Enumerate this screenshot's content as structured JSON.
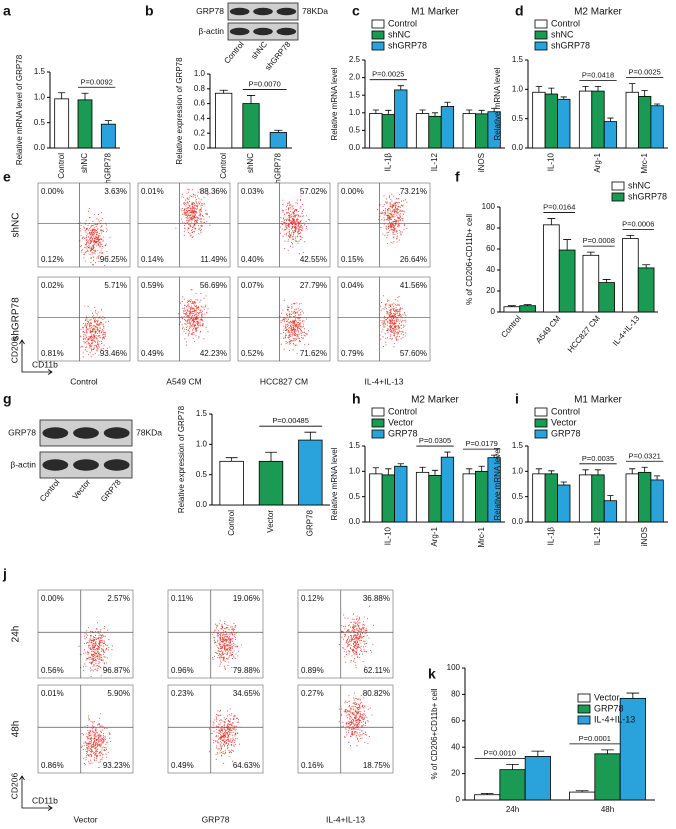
{
  "chart_data": [
    {
      "type": "bar",
      "panel": "a",
      "y_label": "Relative mRNA level of GRP78",
      "categories": [
        "Control",
        "shNC",
        "shGRP78"
      ],
      "values": [
        0.97,
        0.95,
        0.47
      ],
      "errors": [
        0.12,
        0.13,
        0.07
      ],
      "colors": [
        "#ffffff",
        "#1a9a52",
        "#2aa3dc"
      ],
      "ylim": [
        0,
        1.5
      ],
      "yticks": [
        {
          "value": 0,
          "label": "0.0"
        },
        0.5,
        {
          "value": 1,
          "label": "1.0"
        },
        1.5
      ],
      "annotations": [
        {
          "label": "P=0.0092",
          "between": [
            "shNC",
            "shGRP78"
          ]
        }
      ]
    },
    {
      "type": "bar",
      "y_label": "Relative expression of GRP78",
      "categories": [
        "Control",
        "shNC",
        "shGRP78"
      ],
      "values": [
        0.74,
        0.6,
        0.21
      ],
      "errors": [
        0.04,
        0.11,
        0.03
      ],
      "colors": [
        "#ffffff",
        "#1a9a52",
        "#2aa3dc"
      ],
      "ylim": [
        0,
        1
      ],
      "yticks": [
        {
          "value": 0,
          "label": "0.0"
        },
        0.2,
        0.4,
        0.6,
        0.8,
        {
          "value": 1,
          "label": "1.0"
        }
      ],
      "annotations": [
        {
          "label": "P=0.0070",
          "between": [
            "shNC",
            "shGRP78"
          ]
        }
      ]
    },
    {
      "type": "grouped_bar",
      "panel": "c",
      "title": "M1 Marker",
      "y_label": "Relative mRNA level",
      "categories": [
        "IL-1β",
        "IL-12",
        "iNOS"
      ],
      "series": [
        {
          "name": "Control",
          "color": "#ffffff",
          "values": [
            0.98,
            0.98,
            0.98
          ],
          "errors": [
            0.1,
            0.1,
            0.1
          ]
        },
        {
          "name": "shNC",
          "color": "#1a9a52",
          "values": [
            0.95,
            0.9,
            0.97
          ],
          "errors": [
            0.12,
            0.1,
            0.1
          ]
        },
        {
          "name": "shGRP78",
          "color": "#2aa3dc",
          "values": [
            1.65,
            1.18,
            1.03
          ],
          "errors": [
            0.12,
            0.12,
            0.1
          ]
        }
      ],
      "ylim": [
        0,
        2.5
      ],
      "yticks": [
        {
          "value": 0,
          "label": "0.0"
        },
        0.5,
        {
          "value": 1,
          "label": "1.0"
        },
        1.5,
        {
          "value": 2,
          "label": "2.0"
        },
        2.5
      ],
      "annotations": [
        {
          "label": "P=0.0025",
          "category": "IL-1β",
          "between": [
            "Control",
            "shGRP78"
          ]
        }
      ]
    },
    {
      "type": "grouped_bar",
      "panel": "d",
      "title": "M2 Marker",
      "y_label": "Relative mRNA level",
      "categories": [
        "IL-10",
        "Arg-1",
        "Mrc-1"
      ],
      "series": [
        {
          "name": "Control",
          "color": "#ffffff",
          "values": [
            0.95,
            0.97,
            0.95
          ],
          "errors": [
            0.1,
            0.08,
            0.15
          ]
        },
        {
          "name": "shNC",
          "color": "#1a9a52",
          "values": [
            0.92,
            0.97,
            0.88
          ],
          "errors": [
            0.1,
            0.08,
            0.1
          ]
        },
        {
          "name": "shGRP78",
          "color": "#2aa3dc",
          "values": [
            0.83,
            0.45,
            0.72
          ],
          "errors": [
            0.04,
            0.06,
            0.03
          ]
        }
      ],
      "ylim": [
        0,
        1.5
      ],
      "yticks": [
        {
          "value": 0,
          "label": "0.0"
        },
        0.5,
        {
          "value": 1,
          "label": "1.0"
        },
        1.5
      ],
      "annotations": [
        {
          "label": "P=0.0418",
          "category": "Arg-1",
          "between": [
            "Control",
            "shGRP78"
          ]
        },
        {
          "label": "P=0.0025",
          "category": "Mrc-1",
          "between": [
            "Control",
            "shGRP78"
          ]
        }
      ]
    },
    {
      "type": "grouped_bar",
      "panel": "f",
      "y_label": "% of CD206+CD11b+ cell",
      "categories": [
        "Control",
        "A549 CM",
        "HCC827 CM",
        "IL-4+IL-13"
      ],
      "series": [
        {
          "name": "shNC",
          "color": "#ffffff",
          "values": [
            5,
            83,
            54,
            70
          ],
          "errors": [
            1,
            6,
            3,
            3
          ]
        },
        {
          "name": "shGRP78",
          "color": "#1a9a52",
          "values": [
            6,
            59,
            28,
            42
          ],
          "errors": [
            1,
            10,
            3,
            3
          ]
        }
      ],
      "ylim": [
        0,
        100
      ],
      "yticks": [
        0,
        20,
        40,
        60,
        80,
        100
      ],
      "annotations": [
        {
          "label": "P=0.0164",
          "category": "A549 CM",
          "between": [
            "shNC",
            "shGRP78"
          ]
        },
        {
          "label": "P=0.0008",
          "category": "HCC827 CM",
          "between": [
            "shNC",
            "shGRP78"
          ]
        },
        {
          "label": "P=0.0006",
          "category": "IL-4+IL-13",
          "between": [
            "shNC",
            "shGRP78"
          ]
        }
      ]
    },
    {
      "type": "bar",
      "y_label": "Relative expression of GRP78",
      "categories": [
        "Control",
        "Vector",
        "GRP78"
      ],
      "values": [
        0.72,
        0.72,
        1.07
      ],
      "errors": [
        0.06,
        0.15,
        0.13
      ],
      "colors": [
        "#ffffff",
        "#1a9a52",
        "#2aa3dc"
      ],
      "ylim": [
        0,
        1.5
      ],
      "yticks": [
        {
          "value": 0,
          "label": "0.0"
        },
        0.5,
        {
          "value": 1,
          "label": "1.0"
        },
        1.5
      ],
      "annotations": [
        {
          "label": "P=0.00485",
          "between": [
            "Vector",
            "GRP78"
          ]
        }
      ]
    },
    {
      "type": "grouped_bar",
      "panel": "h",
      "title": "M2 Marker",
      "y_label": "Relative mRNA level",
      "categories": [
        "IL-10",
        "Arg-1",
        "Mrc-1"
      ],
      "series": [
        {
          "name": "Control",
          "color": "#ffffff",
          "values": [
            0.95,
            0.98,
            0.95
          ],
          "errors": [
            0.12,
            0.1,
            0.1
          ]
        },
        {
          "name": "Vector",
          "color": "#1a9a52",
          "values": [
            0.93,
            0.92,
            1.0
          ],
          "errors": [
            0.12,
            0.1,
            0.1
          ]
        },
        {
          "name": "GRP78",
          "color": "#2aa3dc",
          "values": [
            1.1,
            1.28,
            1.27
          ],
          "errors": [
            0.05,
            0.1,
            0.05
          ]
        }
      ],
      "ylim": [
        0,
        1.5
      ],
      "yticks": [
        {
          "value": 0,
          "label": "0.0"
        },
        0.5,
        {
          "value": 1,
          "label": "1.0"
        },
        1.5
      ],
      "annotations": [
        {
          "label": "P=0.0305",
          "category": "Arg-1",
          "between": [
            "Control",
            "GRP78"
          ]
        },
        {
          "label": "P=0.0179",
          "category": "Mrc-1",
          "between": [
            "Control",
            "GRP78"
          ]
        }
      ]
    },
    {
      "type": "grouped_bar",
      "panel": "i",
      "title": "M1 Marker",
      "y_label": "Relative mRNA level",
      "categories": [
        "IL-1β",
        "IL-12",
        "iNOS"
      ],
      "series": [
        {
          "name": "Control",
          "color": "#ffffff",
          "values": [
            0.95,
            0.93,
            0.95
          ],
          "errors": [
            0.1,
            0.1,
            0.1
          ]
        },
        {
          "name": "Vector",
          "color": "#1a9a52",
          "values": [
            0.95,
            0.93,
            0.98
          ],
          "errors": [
            0.06,
            0.1,
            0.1
          ]
        },
        {
          "name": "GRP78",
          "color": "#2aa3dc",
          "values": [
            0.73,
            0.42,
            0.83
          ],
          "errors": [
            0.06,
            0.1,
            0.08
          ]
        }
      ],
      "ylim": [
        0,
        1.5
      ],
      "yticks": [
        {
          "value": 0,
          "label": "0.0"
        },
        0.5,
        {
          "value": 1,
          "label": "1.0"
        },
        1.5
      ],
      "annotations": [
        {
          "label": "P=0.0035",
          "category": "IL-12",
          "between": [
            "Control",
            "GRP78"
          ]
        },
        {
          "label": "P=0.0321",
          "category": "iNOS",
          "between": [
            "Control",
            "GRP78"
          ]
        }
      ]
    },
    {
      "type": "grouped_bar",
      "panel": "k",
      "y_label": "% of CD206+CD11b+ cell",
      "categories": [
        "24h",
        "48h"
      ],
      "series": [
        {
          "name": "Vector",
          "color": "#ffffff",
          "values": [
            4,
            6
          ],
          "errors": [
            1,
            1
          ]
        },
        {
          "name": "GRP78",
          "color": "#1a9a52",
          "values": [
            23,
            35
          ],
          "errors": [
            4,
            3
          ]
        },
        {
          "name": "IL-4+IL-13",
          "color": "#2aa3dc",
          "values": [
            33,
            77
          ],
          "errors": [
            4,
            4
          ]
        }
      ],
      "ylim": [
        0,
        100
      ],
      "yticks": [
        0,
        20,
        40,
        60,
        80,
        100
      ],
      "annotations": [
        {
          "label": "P=0.0010",
          "category": "24h",
          "between": [
            "Vector",
            "GRP78"
          ]
        },
        {
          "label": "P=0.0001",
          "category": "48h",
          "between": [
            "Vector",
            "GRP78"
          ]
        }
      ]
    }
  ],
  "flow_panels": [
    {
      "panel": "e",
      "y_axis": "CD206",
      "x_axis": "CD11b",
      "rows": [
        "shNC",
        "shGRP78"
      ],
      "columns": [
        "Control",
        "A549 CM",
        "HCC827 CM",
        "IL-4+IL-13"
      ],
      "quadrants": [
        [
          [
            "0.00%",
            "3.63%",
            "0.12%",
            "96.25%"
          ],
          [
            "0.01%",
            "88.36%",
            "0.14%",
            "11.49%"
          ],
          [
            "0.03%",
            "57.02%",
            "0.40%",
            "42.55%"
          ],
          [
            "0.00%",
            "73.21%",
            "0.15%",
            "26.64%"
          ]
        ],
        [
          [
            "0.02%",
            "5.71%",
            "0.81%",
            "93.46%"
          ],
          [
            "0.59%",
            "56.69%",
            "0.49%",
            "42.23%"
          ],
          [
            "0.07%",
            "27.79%",
            "0.52%",
            "71.62%"
          ],
          [
            "0.04%",
            "41.56%",
            "0.79%",
            "57.60%"
          ]
        ]
      ]
    },
    {
      "panel": "j",
      "y_axis": "CD206",
      "x_axis": "CD11b",
      "rows": [
        "24h",
        "48h"
      ],
      "columns": [
        "Vector",
        "GRP78",
        "IL-4+IL-13"
      ],
      "quadrants": [
        [
          [
            "0.00%",
            "2.57%",
            "0.56%",
            "96.87%"
          ],
          [
            "0.11%",
            "19.06%",
            "0.96%",
            "79.88%"
          ],
          [
            "0.12%",
            "36.88%",
            "0.89%",
            "62.11%"
          ]
        ],
        [
          [
            "0.01%",
            "5.90%",
            "0.86%",
            "93.23%"
          ],
          [
            "0.23%",
            "34.65%",
            "0.49%",
            "64.63%"
          ],
          [
            "0.27%",
            "80.82%",
            "0.16%",
            "18.75%"
          ]
        ]
      ]
    }
  ],
  "blots": [
    {
      "panel": "b",
      "bands": [
        "GRP78",
        "β-actin"
      ],
      "size": "78KDa",
      "lanes": [
        "Control",
        "shNC",
        "shGRP78"
      ]
    },
    {
      "panel": "g",
      "bands": [
        "GRP78",
        "β-actin"
      ],
      "size": "78KDa",
      "lanes": [
        "Control",
        "Vector",
        "GRP78"
      ]
    }
  ]
}
